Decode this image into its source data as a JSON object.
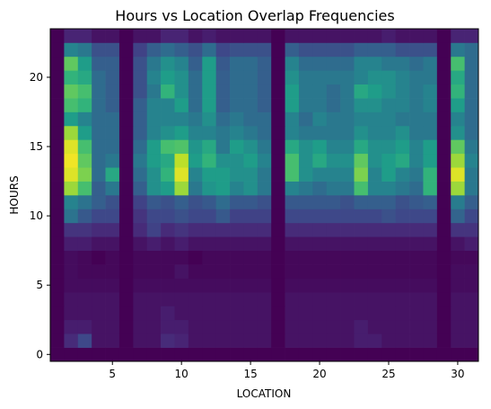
{
  "chart_data": {
    "type": "heatmap",
    "title": "Hours vs Location Overlap Frequencies",
    "xlabel": "LOCATION",
    "ylabel": "HOURS",
    "x_range": [
      0.5,
      31.5
    ],
    "y_range": [
      -0.5,
      23.5
    ],
    "x_ticks": [
      5,
      10,
      15,
      20,
      25,
      30
    ],
    "y_ticks": [
      0,
      5,
      10,
      15,
      20
    ],
    "colormap": [
      "#440154",
      "#482878",
      "#3e4989",
      "#31688e",
      "#26828e",
      "#1f9e89",
      "#35b779",
      "#6ece58",
      "#b5de2b",
      "#fde725"
    ],
    "value_range": [
      0,
      1
    ],
    "grid": false,
    "x_locations": [
      1,
      2,
      3,
      4,
      5,
      6,
      7,
      8,
      9,
      10,
      11,
      12,
      13,
      14,
      15,
      16,
      17,
      18,
      19,
      20,
      21,
      22,
      23,
      24,
      25,
      26,
      27,
      28,
      29,
      30,
      31
    ],
    "y_hours": [
      0,
      1,
      2,
      3,
      4,
      5,
      6,
      7,
      8,
      9,
      10,
      11,
      12,
      13,
      14,
      15,
      16,
      17,
      18,
      19,
      20,
      21,
      22,
      23
    ],
    "values": [
      [
        0.0,
        0.0,
        0.0,
        0.0,
        0.0,
        0.0,
        0.0,
        0.0,
        0.0,
        0.0,
        0.0,
        0.0,
        0.0,
        0.0,
        0.0,
        0.0,
        0.0,
        0.0,
        0.0,
        0.0,
        0.0,
        0.0,
        0.0,
        0.0,
        0.0,
        0.0,
        0.0,
        0.0,
        0.0,
        0.0,
        0.0
      ],
      [
        0.0,
        0.12,
        0.22,
        0.05,
        0.05,
        0.0,
        0.05,
        0.05,
        0.12,
        0.1,
        0.05,
        0.05,
        0.05,
        0.05,
        0.05,
        0.05,
        0.0,
        0.05,
        0.05,
        0.05,
        0.05,
        0.05,
        0.08,
        0.08,
        0.05,
        0.05,
        0.05,
        0.05,
        0.0,
        0.05,
        0.05
      ],
      [
        0.0,
        0.08,
        0.08,
        0.05,
        0.05,
        0.0,
        0.05,
        0.05,
        0.08,
        0.08,
        0.05,
        0.05,
        0.05,
        0.05,
        0.05,
        0.05,
        0.0,
        0.05,
        0.05,
        0.05,
        0.05,
        0.05,
        0.08,
        0.05,
        0.05,
        0.05,
        0.05,
        0.05,
        0.0,
        0.05,
        0.05
      ],
      [
        0.0,
        0.05,
        0.05,
        0.05,
        0.05,
        0.0,
        0.05,
        0.05,
        0.08,
        0.05,
        0.05,
        0.05,
        0.05,
        0.05,
        0.05,
        0.05,
        0.0,
        0.05,
        0.05,
        0.05,
        0.05,
        0.05,
        0.05,
        0.05,
        0.05,
        0.05,
        0.05,
        0.05,
        0.0,
        0.05,
        0.05
      ],
      [
        0.0,
        0.05,
        0.05,
        0.05,
        0.05,
        0.0,
        0.05,
        0.05,
        0.05,
        0.05,
        0.05,
        0.05,
        0.05,
        0.05,
        0.05,
        0.05,
        0.0,
        0.05,
        0.05,
        0.05,
        0.05,
        0.05,
        0.05,
        0.05,
        0.05,
        0.05,
        0.05,
        0.05,
        0.0,
        0.05,
        0.05
      ],
      [
        0.0,
        0.03,
        0.03,
        0.03,
        0.03,
        0.0,
        0.03,
        0.03,
        0.03,
        0.03,
        0.03,
        0.03,
        0.03,
        0.03,
        0.03,
        0.03,
        0.0,
        0.03,
        0.03,
        0.03,
        0.03,
        0.03,
        0.03,
        0.03,
        0.03,
        0.03,
        0.03,
        0.03,
        0.0,
        0.03,
        0.03
      ],
      [
        0.0,
        0.03,
        0.02,
        0.02,
        0.02,
        0.0,
        0.02,
        0.02,
        0.02,
        0.05,
        0.02,
        0.02,
        0.02,
        0.02,
        0.02,
        0.02,
        0.0,
        0.02,
        0.02,
        0.02,
        0.02,
        0.02,
        0.02,
        0.02,
        0.02,
        0.02,
        0.02,
        0.02,
        0.0,
        0.03,
        0.03
      ],
      [
        0.0,
        0.03,
        0.02,
        0.0,
        0.02,
        0.0,
        0.02,
        0.02,
        0.02,
        0.02,
        0.0,
        0.02,
        0.02,
        0.02,
        0.02,
        0.02,
        0.0,
        0.02,
        0.02,
        0.02,
        0.02,
        0.02,
        0.02,
        0.02,
        0.02,
        0.02,
        0.02,
        0.02,
        0.0,
        0.02,
        0.02
      ],
      [
        0.0,
        0.08,
        0.08,
        0.05,
        0.05,
        0.0,
        0.05,
        0.08,
        0.05,
        0.08,
        0.05,
        0.05,
        0.05,
        0.05,
        0.05,
        0.05,
        0.0,
        0.05,
        0.05,
        0.05,
        0.05,
        0.05,
        0.05,
        0.05,
        0.05,
        0.05,
        0.05,
        0.05,
        0.0,
        0.05,
        0.08
      ],
      [
        0.0,
        0.15,
        0.15,
        0.12,
        0.12,
        0.0,
        0.12,
        0.2,
        0.12,
        0.15,
        0.12,
        0.12,
        0.12,
        0.12,
        0.12,
        0.12,
        0.0,
        0.12,
        0.12,
        0.12,
        0.12,
        0.12,
        0.12,
        0.12,
        0.12,
        0.12,
        0.12,
        0.12,
        0.0,
        0.15,
        0.15
      ],
      [
        0.0,
        0.38,
        0.28,
        0.22,
        0.22,
        0.0,
        0.15,
        0.22,
        0.22,
        0.25,
        0.22,
        0.22,
        0.28,
        0.2,
        0.2,
        0.2,
        0.0,
        0.22,
        0.22,
        0.22,
        0.22,
        0.22,
        0.22,
        0.22,
        0.25,
        0.22,
        0.22,
        0.22,
        0.0,
        0.32,
        0.22
      ],
      [
        0.0,
        0.45,
        0.38,
        0.3,
        0.25,
        0.0,
        0.2,
        0.28,
        0.25,
        0.3,
        0.25,
        0.28,
        0.35,
        0.28,
        0.28,
        0.25,
        0.0,
        0.28,
        0.28,
        0.28,
        0.28,
        0.25,
        0.3,
        0.3,
        0.3,
        0.25,
        0.28,
        0.3,
        0.0,
        0.42,
        0.3
      ],
      [
        0.0,
        0.85,
        0.7,
        0.3,
        0.4,
        0.0,
        0.3,
        0.5,
        0.55,
        0.85,
        0.4,
        0.52,
        0.55,
        0.45,
        0.5,
        0.4,
        0.0,
        0.45,
        0.4,
        0.35,
        0.4,
        0.4,
        0.7,
        0.45,
        0.45,
        0.4,
        0.35,
        0.65,
        0.0,
        0.85,
        0.4
      ],
      [
        0.0,
        0.95,
        0.8,
        0.35,
        0.6,
        0.0,
        0.35,
        0.5,
        0.65,
        0.95,
        0.45,
        0.55,
        0.55,
        0.5,
        0.5,
        0.4,
        0.0,
        0.7,
        0.5,
        0.45,
        0.45,
        0.45,
        0.8,
        0.45,
        0.55,
        0.45,
        0.4,
        0.65,
        0.0,
        0.95,
        0.4
      ],
      [
        0.0,
        0.98,
        0.75,
        0.35,
        0.4,
        0.0,
        0.4,
        0.55,
        0.6,
        0.9,
        0.55,
        0.65,
        0.5,
        0.5,
        0.55,
        0.45,
        0.0,
        0.7,
        0.5,
        0.6,
        0.5,
        0.5,
        0.75,
        0.5,
        0.55,
        0.6,
        0.45,
        0.55,
        0.0,
        0.85,
        0.45
      ],
      [
        0.0,
        0.95,
        0.7,
        0.35,
        0.35,
        0.0,
        0.35,
        0.55,
        0.7,
        0.72,
        0.52,
        0.6,
        0.4,
        0.55,
        0.5,
        0.4,
        0.0,
        0.6,
        0.5,
        0.55,
        0.45,
        0.45,
        0.6,
        0.5,
        0.5,
        0.55,
        0.45,
        0.55,
        0.0,
        0.75,
        0.4
      ],
      [
        0.0,
        0.85,
        0.55,
        0.35,
        0.35,
        0.0,
        0.3,
        0.45,
        0.5,
        0.55,
        0.45,
        0.45,
        0.4,
        0.45,
        0.4,
        0.35,
        0.0,
        0.45,
        0.4,
        0.4,
        0.4,
        0.4,
        0.5,
        0.45,
        0.45,
        0.5,
        0.4,
        0.4,
        0.0,
        0.5,
        0.35
      ],
      [
        0.0,
        0.55,
        0.45,
        0.35,
        0.35,
        0.0,
        0.3,
        0.45,
        0.45,
        0.45,
        0.4,
        0.5,
        0.35,
        0.4,
        0.35,
        0.35,
        0.0,
        0.45,
        0.35,
        0.45,
        0.4,
        0.4,
        0.45,
        0.45,
        0.45,
        0.4,
        0.4,
        0.4,
        0.0,
        0.45,
        0.35
      ],
      [
        0.0,
        0.7,
        0.65,
        0.35,
        0.3,
        0.0,
        0.3,
        0.45,
        0.45,
        0.55,
        0.35,
        0.55,
        0.3,
        0.35,
        0.35,
        0.3,
        0.0,
        0.55,
        0.4,
        0.4,
        0.35,
        0.4,
        0.5,
        0.5,
        0.45,
        0.45,
        0.4,
        0.45,
        0.0,
        0.55,
        0.35
      ],
      [
        0.0,
        0.75,
        0.7,
        0.35,
        0.3,
        0.0,
        0.25,
        0.4,
        0.65,
        0.5,
        0.35,
        0.55,
        0.3,
        0.35,
        0.35,
        0.3,
        0.0,
        0.55,
        0.4,
        0.4,
        0.35,
        0.4,
        0.6,
        0.55,
        0.5,
        0.45,
        0.4,
        0.45,
        0.0,
        0.65,
        0.35
      ],
      [
        0.0,
        0.65,
        0.6,
        0.35,
        0.3,
        0.0,
        0.25,
        0.45,
        0.55,
        0.5,
        0.35,
        0.55,
        0.3,
        0.35,
        0.35,
        0.3,
        0.0,
        0.5,
        0.4,
        0.4,
        0.4,
        0.4,
        0.45,
        0.5,
        0.5,
        0.45,
        0.4,
        0.4,
        0.0,
        0.6,
        0.35
      ],
      [
        0.0,
        0.75,
        0.55,
        0.3,
        0.3,
        0.0,
        0.25,
        0.4,
        0.5,
        0.45,
        0.3,
        0.55,
        0.28,
        0.35,
        0.35,
        0.3,
        0.0,
        0.45,
        0.35,
        0.35,
        0.35,
        0.35,
        0.45,
        0.45,
        0.4,
        0.4,
        0.35,
        0.4,
        0.0,
        0.7,
        0.35
      ],
      [
        0.0,
        0.45,
        0.4,
        0.25,
        0.25,
        0.0,
        0.2,
        0.3,
        0.35,
        0.3,
        0.25,
        0.35,
        0.22,
        0.25,
        0.25,
        0.25,
        0.0,
        0.3,
        0.25,
        0.25,
        0.25,
        0.25,
        0.3,
        0.3,
        0.3,
        0.25,
        0.25,
        0.25,
        0.0,
        0.4,
        0.35
      ],
      [
        0.0,
        0.1,
        0.1,
        0.05,
        0.05,
        0.0,
        0.05,
        0.05,
        0.1,
        0.1,
        0.05,
        0.08,
        0.05,
        0.05,
        0.05,
        0.05,
        0.0,
        0.05,
        0.05,
        0.05,
        0.05,
        0.05,
        0.05,
        0.05,
        0.08,
        0.05,
        0.05,
        0.05,
        0.0,
        0.1,
        0.1
      ]
    ]
  }
}
